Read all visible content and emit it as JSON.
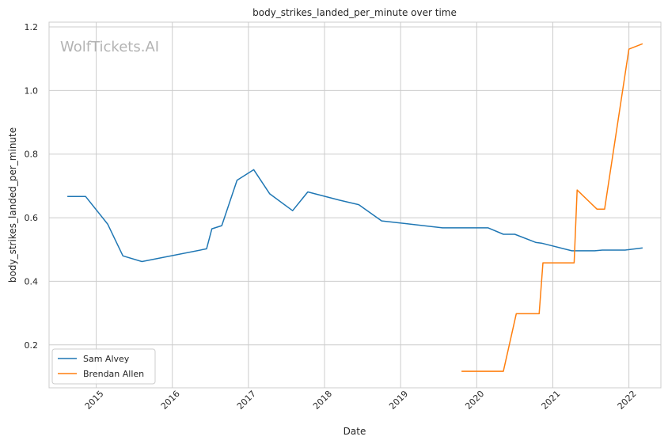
{
  "chart_data": {
    "type": "line",
    "title": "body_strikes_landed_per_minute over time",
    "xlabel": "Date",
    "ylabel": "body_strikes_landed_per_minute",
    "watermark": "WolfTickets.AI",
    "xlim": [
      2014.38,
      2022.42
    ],
    "ylim": [
      0.065,
      1.215
    ],
    "x_ticks": [
      {
        "label": "2015",
        "value": 2015.0
      },
      {
        "label": "2016",
        "value": 2016.0
      },
      {
        "label": "2017",
        "value": 2017.0
      },
      {
        "label": "2018",
        "value": 2018.0
      },
      {
        "label": "2019",
        "value": 2019.0
      },
      {
        "label": "2020",
        "value": 2020.0
      },
      {
        "label": "2021",
        "value": 2021.0
      },
      {
        "label": "2022",
        "value": 2022.0
      }
    ],
    "y_ticks": [
      {
        "label": "0.2",
        "value": 0.2
      },
      {
        "label": "0.4",
        "value": 0.4
      },
      {
        "label": "0.6",
        "value": 0.6
      },
      {
        "label": "0.8",
        "value": 0.8
      },
      {
        "label": "1.0",
        "value": 1.0
      },
      {
        "label": "1.2",
        "value": 1.2
      }
    ],
    "grid": true,
    "legend_position": "lower-left",
    "series": [
      {
        "name": "Sam Alvey",
        "color": "#1f77b4",
        "points": [
          [
            2014.62,
            0.667
          ],
          [
            2014.86,
            0.667
          ],
          [
            2015.15,
            0.58
          ],
          [
            2015.35,
            0.48
          ],
          [
            2015.6,
            0.462
          ],
          [
            2016.45,
            0.502
          ],
          [
            2016.52,
            0.565
          ],
          [
            2016.65,
            0.575
          ],
          [
            2016.85,
            0.718
          ],
          [
            2017.07,
            0.751
          ],
          [
            2017.28,
            0.675
          ],
          [
            2017.58,
            0.622
          ],
          [
            2017.78,
            0.681
          ],
          [
            2018.2,
            0.655
          ],
          [
            2018.45,
            0.641
          ],
          [
            2018.75,
            0.59
          ],
          [
            2019.55,
            0.568
          ],
          [
            2020.15,
            0.568
          ],
          [
            2020.35,
            0.548
          ],
          [
            2020.5,
            0.548
          ],
          [
            2020.78,
            0.522
          ],
          [
            2020.85,
            0.52
          ],
          [
            2021.25,
            0.496
          ],
          [
            2021.55,
            0.496
          ],
          [
            2021.65,
            0.498
          ],
          [
            2021.95,
            0.498
          ],
          [
            2022.18,
            0.505
          ]
        ]
      },
      {
        "name": "Brendan Allen",
        "color": "#ff7f0e",
        "points": [
          [
            2019.8,
            0.117
          ],
          [
            2020.35,
            0.117
          ],
          [
            2020.52,
            0.298
          ],
          [
            2020.82,
            0.298
          ],
          [
            2020.87,
            0.458
          ],
          [
            2021.28,
            0.458
          ],
          [
            2021.32,
            0.687
          ],
          [
            2021.58,
            0.627
          ],
          [
            2021.68,
            0.627
          ],
          [
            2022.0,
            1.13
          ],
          [
            2022.18,
            1.147
          ]
        ]
      }
    ]
  }
}
